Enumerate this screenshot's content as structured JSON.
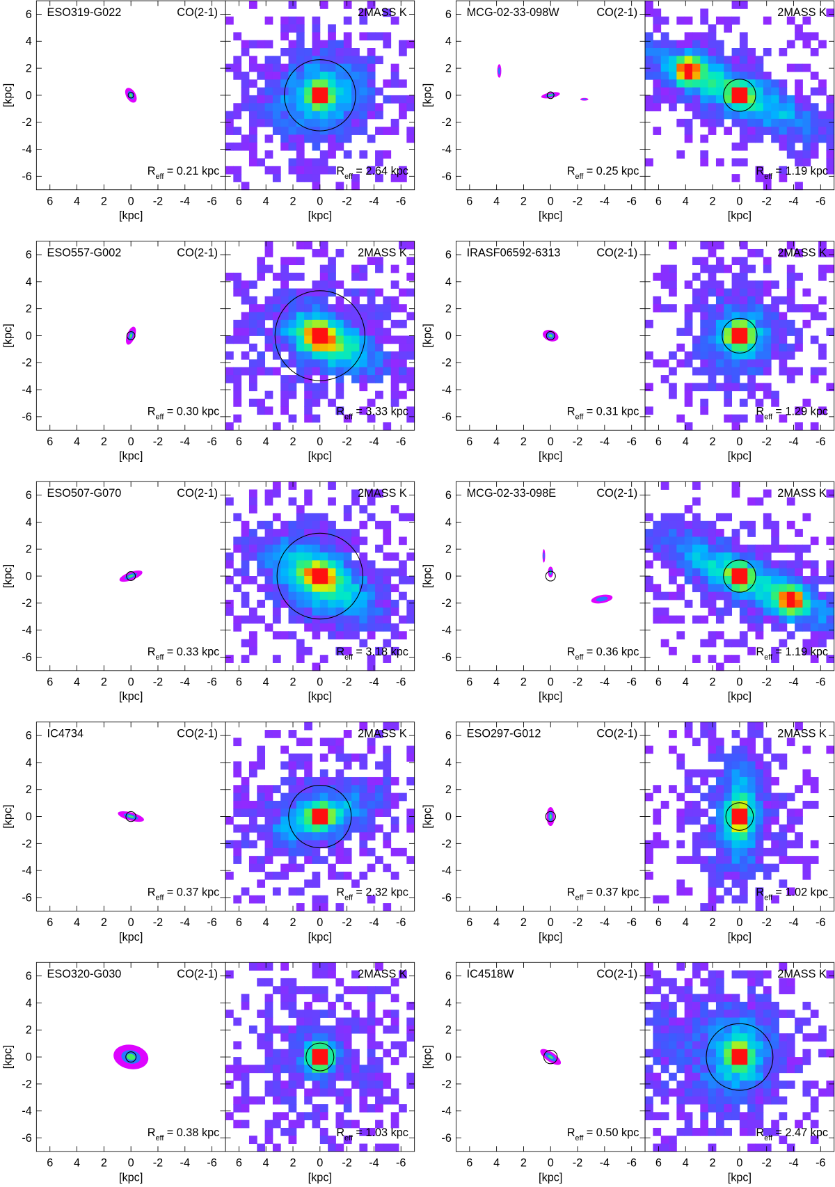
{
  "axis_label": "[kpc]",
  "xlim": [
    7,
    -7
  ],
  "ylim": [
    -7,
    7
  ],
  "ticks": [
    6,
    4,
    2,
    0,
    -2,
    -4,
    -6
  ],
  "co_tag": "CO(2-1)",
  "k_tag": "2MASS K",
  "reff_symbol": "R",
  "reff_subscript": "eff",
  "panels": [
    {
      "name": "ESO319-G022",
      "co_reff": {
        "value": 0.21,
        "label": "= 0.21 kpc"
      },
      "k_reff": {
        "value": 2.64,
        "label": "= 2.64 kpc"
      }
    },
    {
      "name": "MCG-02-33-098W",
      "co_reff": {
        "value": 0.25,
        "label": "= 0.25 kpc"
      },
      "k_reff": {
        "value": 1.19,
        "label": "= 1.19 kpc"
      }
    },
    {
      "name": "ESO557-G002",
      "co_reff": {
        "value": 0.3,
        "label": "= 0.30 kpc"
      },
      "k_reff": {
        "value": 3.33,
        "label": "= 3.33 kpc"
      }
    },
    {
      "name": "IRASF06592-6313",
      "co_reff": {
        "value": 0.31,
        "label": "= 0.31 kpc"
      },
      "k_reff": {
        "value": 1.29,
        "label": "= 1.29 kpc"
      }
    },
    {
      "name": "ESO507-G070",
      "co_reff": {
        "value": 0.33,
        "label": "= 0.33 kpc"
      },
      "k_reff": {
        "value": 3.18,
        "label": "= 3.18 kpc"
      }
    },
    {
      "name": "MCG-02-33-098E",
      "co_reff": {
        "value": 0.36,
        "label": "= 0.36 kpc"
      },
      "k_reff": {
        "value": 1.19,
        "label": "= 1.19 kpc"
      }
    },
    {
      "name": "IC4734",
      "co_reff": {
        "value": 0.37,
        "label": "= 0.37 kpc"
      },
      "k_reff": {
        "value": 2.32,
        "label": "= 2.32 kpc"
      }
    },
    {
      "name": "ESO297-G012",
      "co_reff": {
        "value": 0.37,
        "label": "= 0.37 kpc"
      },
      "k_reff": {
        "value": 1.02,
        "label": "= 1.02 kpc"
      }
    },
    {
      "name": "ESO320-G030",
      "co_reff": {
        "value": 0.38,
        "label": "= 0.38 kpc"
      },
      "k_reff": {
        "value": 1.03,
        "label": "= 1.03 kpc"
      }
    },
    {
      "name": "IC4518W",
      "co_reff": {
        "value": 0.5,
        "label": "= 0.50 kpc"
      },
      "k_reff": {
        "value": 2.47,
        "label": "= 2.47 kpc"
      }
    }
  ]
}
